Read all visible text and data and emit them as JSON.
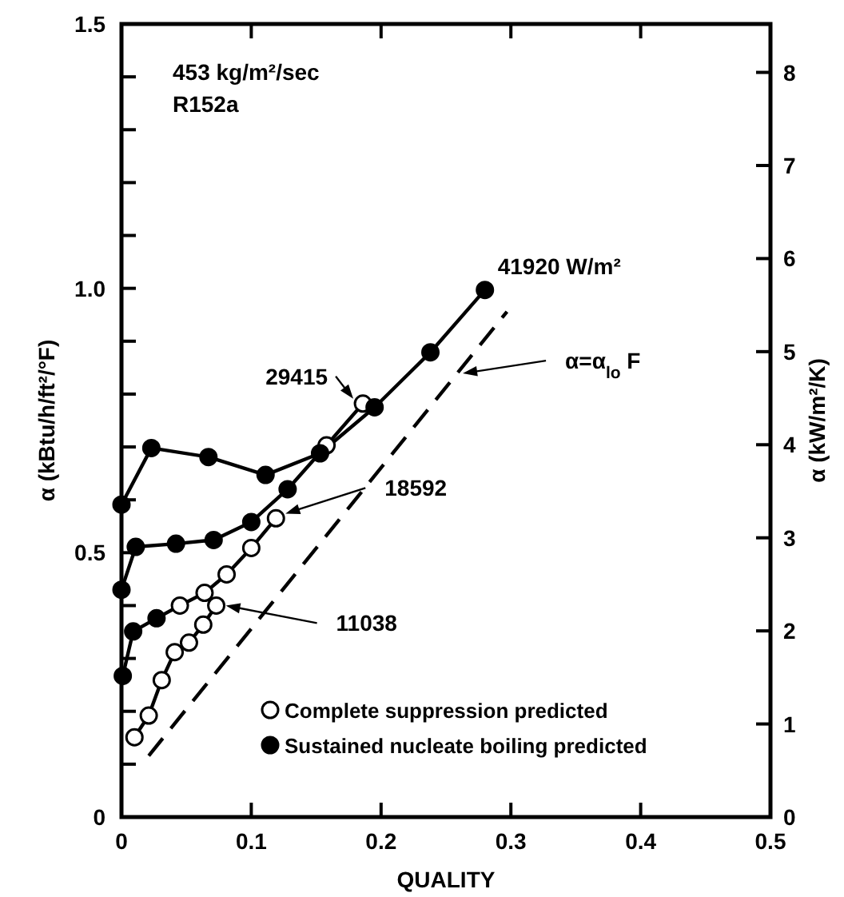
{
  "chart_data": {
    "type": "line",
    "xlabel": "QUALITY",
    "ylabel": "α (kBtu/h/ft²/°F)",
    "y2label": "α (kW/m²/K)",
    "annotations": [
      "453 kg/m²/sec",
      "R152a"
    ],
    "xlim": [
      0,
      0.5
    ],
    "xticks": [
      0,
      0.1,
      0.2,
      0.3,
      0.4,
      0.5
    ],
    "ylim": [
      0,
      1.5
    ],
    "yticks": [
      0,
      {
        "value": 0.1,
        "label": null
      },
      {
        "value": 0.2,
        "label": null
      },
      {
        "value": 0.3,
        "label": null
      },
      {
        "value": 0.4,
        "label": null
      },
      0.5,
      {
        "value": 0.6,
        "label": null
      },
      {
        "value": 0.7,
        "label": null
      },
      {
        "value": 0.8,
        "label": null
      },
      {
        "value": 0.9,
        "label": null
      },
      {
        "value": 1.0,
        "label": "1.0"
      },
      {
        "value": 1.1,
        "label": null
      },
      {
        "value": 1.2,
        "label": null
      },
      {
        "value": 1.3,
        "label": null
      },
      {
        "value": 1.4,
        "label": null
      },
      1.5
    ],
    "y2lim": [
      0,
      8.52
    ],
    "y2ticks": [
      0,
      1,
      2,
      3,
      4,
      5,
      6,
      7,
      8
    ],
    "legend": "bottom right",
    "grid": false,
    "series": [
      {
        "name": "41920 W/m²",
        "color": "#000000",
        "line_style": "solid",
        "x": [
          0,
          0.023,
          0.067,
          0.111,
          0.153,
          0.195,
          0.238,
          0.28
        ],
        "values": [
          0.591,
          0.698,
          0.681,
          0.647,
          0.688,
          0.775,
          0.879,
          0.997
        ]
      },
      {
        "name": "29415",
        "color": "#000000",
        "line_style": "solid",
        "x": [
          0,
          0.011,
          0.042,
          0.071,
          0.1,
          0.128,
          0.158,
          0.186
        ],
        "values": [
          0.43,
          0.511,
          0.517,
          0.524,
          0.558,
          0.62,
          0.703,
          0.782
        ]
      },
      {
        "name": "18592",
        "color": "#000000",
        "line_style": "solid",
        "x": [
          0.001,
          0.009,
          0.027,
          0.045,
          0.064,
          0.081,
          0.1,
          0.119
        ],
        "values": [
          0.267,
          0.351,
          0.376,
          0.4,
          0.424,
          0.459,
          0.509,
          0.565
        ]
      },
      {
        "name": "11038",
        "color": "#000000",
        "line_style": "solid",
        "x": [
          0.01,
          0.021,
          0.031,
          0.041,
          0.052,
          0.063,
          0.073
        ],
        "values": [
          0.151,
          0.192,
          0.259,
          0.312,
          0.33,
          0.364,
          0.4
        ]
      },
      {
        "name": "α=α$_{lo}$ F",
        "color": "#000000",
        "line_style": "dashed",
        "x": [
          0.021,
          0.297
        ],
        "values": [
          0.116,
          0.956
        ]
      },
      {
        "name": "Complete suppression predicted",
        "type": "scatter",
        "marker": "circle",
        "color": "#ffffff",
        "x": [
          0.158,
          0.186,
          0.045,
          0.064,
          0.081,
          0.1,
          0.119,
          0.01,
          0.021,
          0.031,
          0.041,
          0.052,
          0.063,
          0.073
        ],
        "values": [
          0.703,
          0.782,
          0.4,
          0.424,
          0.459,
          0.509,
          0.565,
          0.151,
          0.192,
          0.259,
          0.312,
          0.33,
          0.364,
          0.4
        ]
      },
      {
        "name": "Sustained nucleate boiling predicted",
        "type": "scatter",
        "marker": "circle",
        "color": "#000000",
        "x": [
          0,
          0.023,
          0.067,
          0.111,
          0.153,
          0.195,
          0.238,
          0.28,
          0,
          0.011,
          0.042,
          0.071,
          0.1,
          0.128,
          0.001,
          0.009,
          0.027
        ],
        "values": [
          0.591,
          0.698,
          0.681,
          0.647,
          0.688,
          0.775,
          0.879,
          0.997,
          0.43,
          0.511,
          0.517,
          0.524,
          0.558,
          0.62,
          0.267,
          0.351,
          0.376
        ]
      }
    ]
  }
}
